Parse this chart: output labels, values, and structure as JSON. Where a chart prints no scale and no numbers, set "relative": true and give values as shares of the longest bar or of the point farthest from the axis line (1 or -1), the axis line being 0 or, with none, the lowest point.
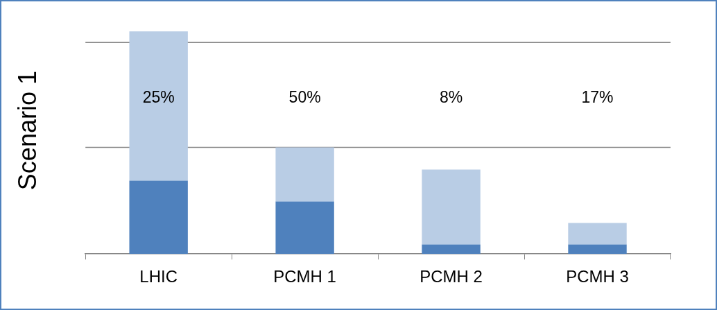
{
  "chart_data": {
    "type": "bar",
    "ylabel": "Scenario 1",
    "categories": [
      "LHIC",
      "PCMH 1",
      "PCMH 2",
      "PCMH 3"
    ],
    "stacked": true,
    "relative": true,
    "series": [
      {
        "color": "#4f81bd",
        "values": [
          0.329,
          0.236,
          0.043,
          0.043
        ]
      },
      {
        "color": "#b9cde5",
        "values": [
          0.671,
          0.243,
          0.336,
          0.096
        ]
      }
    ],
    "ref_lines": [
      {
        "axis": "y",
        "value": 0.479,
        "color": "#868686"
      },
      {
        "axis": "y",
        "value": 0.95,
        "color": "#868686"
      }
    ],
    "annotations": [
      "25%",
      "50%",
      "8%",
      "17%"
    ],
    "legend": false
  }
}
